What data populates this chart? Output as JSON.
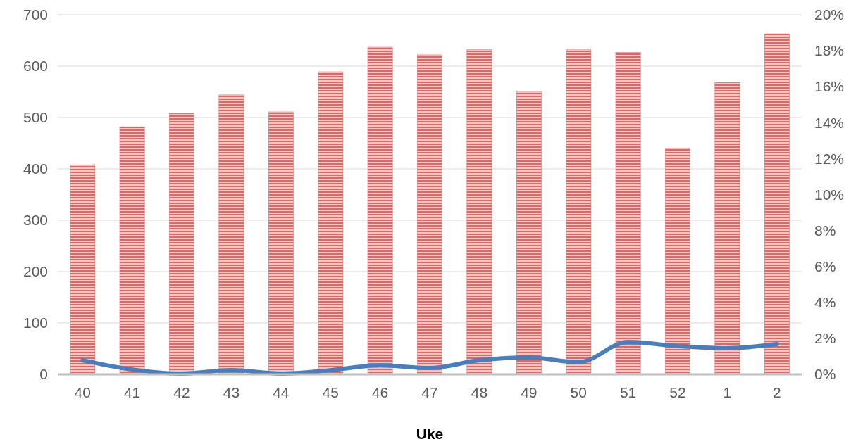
{
  "chart_data": {
    "type": "bar",
    "xlabel": "Uke",
    "categories": [
      "40",
      "41",
      "42",
      "43",
      "44",
      "45",
      "46",
      "47",
      "48",
      "49",
      "50",
      "51",
      "52",
      "1",
      "2"
    ],
    "series": [
      {
        "color": "#d46a6a",
        "values": [
          408,
          482,
          508,
          544,
          511,
          589,
          637,
          622,
          632,
          551,
          633,
          627,
          440,
          568,
          663
        ]
      },
      {
        "type": "line",
        "axis": "y2",
        "color": "#4a7ebb",
        "values": [
          0.78,
          0.27,
          0.04,
          0.23,
          0.04,
          0.23,
          0.5,
          0.35,
          0.78,
          0.94,
          0.67,
          1.8,
          1.57,
          1.45,
          1.68
        ]
      }
    ],
    "ylim": [
      0,
      700
    ],
    "yticks": [
      0,
      100,
      200,
      300,
      400,
      500,
      600,
      700
    ],
    "y2lim": [
      0,
      20
    ],
    "y2ticks": [
      {
        "value": 0,
        "label": "0%"
      },
      {
        "value": 2,
        "label": "2%"
      },
      {
        "value": 4,
        "label": "4%"
      },
      {
        "value": 6,
        "label": "6%"
      },
      {
        "value": 8,
        "label": "8%"
      },
      {
        "value": 10,
        "label": "10%"
      },
      {
        "value": 12,
        "label": "12%"
      },
      {
        "value": 14,
        "label": "14%"
      },
      {
        "value": 16,
        "label": "16%"
      },
      {
        "value": 18,
        "label": "18%"
      },
      {
        "value": 20,
        "label": "20%"
      }
    ],
    "grid": "y",
    "marker": "none",
    "line_style": "solid"
  }
}
